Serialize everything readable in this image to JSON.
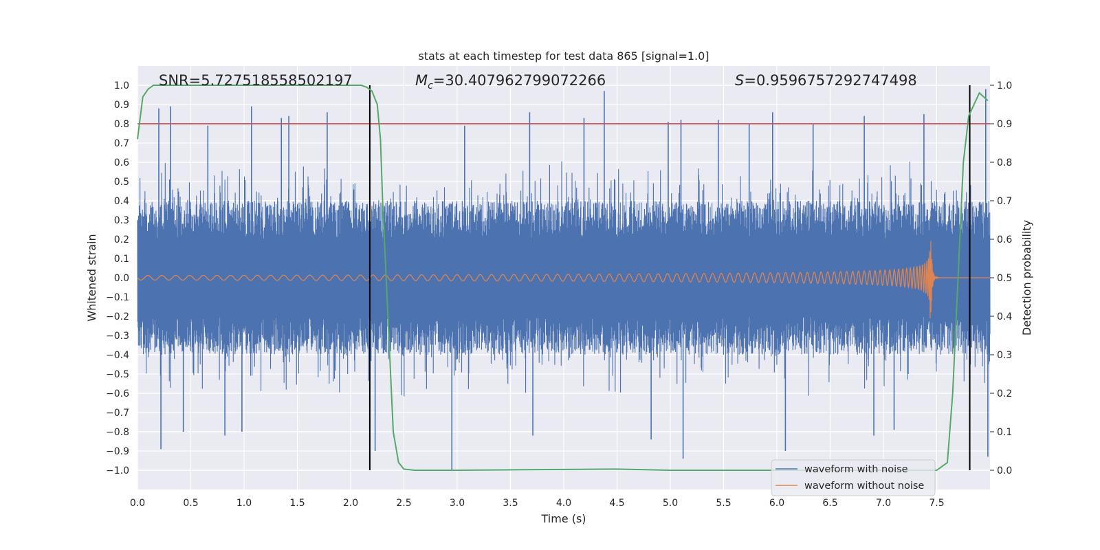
{
  "chart_data": {
    "type": "line",
    "title": "stats at each timestep for test data 865 [signal=1.0]",
    "xlabel": "Time (s)",
    "ylabel": "Whitened strain",
    "y2label": "Detection probability",
    "xlim": [
      0.0,
      8.0
    ],
    "ylim": [
      -1.1,
      1.1
    ],
    "y2lim": [
      -0.05,
      1.05
    ],
    "xticks": [
      "0.0",
      "0.5",
      "1.0",
      "1.5",
      "2.0",
      "2.5",
      "3.0",
      "3.5",
      "4.0",
      "4.5",
      "5.0",
      "5.5",
      "6.0",
      "6.5",
      "7.0",
      "7.5"
    ],
    "yticks": [
      "1.0",
      "0.9",
      "0.8",
      "0.7",
      "0.6",
      "0.5",
      "0.4",
      "0.3",
      "0.2",
      "0.1",
      "0.0",
      "−0.1",
      "−0.2",
      "−0.3",
      "−0.4",
      "−0.5",
      "−0.6",
      "−0.7",
      "−0.8",
      "−0.9",
      "−1.0"
    ],
    "y2ticks": [
      "1.0",
      "0.9",
      "0.8",
      "0.7",
      "0.6",
      "0.5",
      "0.4",
      "0.3",
      "0.2",
      "0.1",
      "0.0"
    ],
    "annotations": {
      "snr": "SNR=5.727518558502197",
      "mc_symbol": "M",
      "mc_sub": "c",
      "mc_value": "=30.407962799072266",
      "s_symbol": "S",
      "s_value": "=0.9596757292747498"
    },
    "legend": {
      "position": "lower-right",
      "entries": [
        "waveform with noise",
        "waveform without noise"
      ]
    },
    "threshold_y2": 0.9,
    "vertical_lines_x": [
      2.18,
      7.81
    ],
    "series": [
      {
        "name": "waveform with noise",
        "color": "#4c72b0",
        "style": "dense noise, |amplitude| mostly within 0.2-0.6 with spikes up to ~0.9",
        "spikes": [
          [
            0.2,
            0.88
          ],
          [
            0.22,
            -0.89
          ],
          [
            0.31,
            0.89
          ],
          [
            0.43,
            -0.8
          ],
          [
            0.66,
            0.79
          ],
          [
            0.82,
            -0.82
          ],
          [
            0.98,
            -0.8
          ],
          [
            1.07,
            0.89
          ],
          [
            1.35,
            0.83
          ],
          [
            1.42,
            0.84
          ],
          [
            1.78,
            0.86
          ],
          [
            2.23,
            -0.9
          ],
          [
            2.95,
            -1.0
          ],
          [
            3.07,
            0.79
          ],
          [
            3.68,
            0.86
          ],
          [
            3.71,
            -0.82
          ],
          [
            4.19,
            0.83
          ],
          [
            4.38,
            0.97
          ],
          [
            4.82,
            -0.84
          ],
          [
            4.98,
            0.81
          ],
          [
            5.1,
            0.82
          ],
          [
            5.12,
            -0.94
          ],
          [
            5.45,
            0.82
          ],
          [
            5.74,
            0.8
          ],
          [
            5.96,
            0.86
          ],
          [
            6.08,
            -0.9
          ],
          [
            6.34,
            0.8
          ],
          [
            6.82,
            0.84
          ],
          [
            6.91,
            -0.82
          ],
          [
            7.1,
            -0.79
          ],
          [
            7.38,
            0.85
          ],
          [
            7.96,
            0.98
          ],
          [
            7.98,
            -0.93
          ]
        ]
      },
      {
        "name": "waveform without noise",
        "color": "#dd8452",
        "style": "chirp: near-zero amplitude growing to peak ~0.32 at merger then ringdown",
        "merger_time": 7.44,
        "peak_amplitude": 0.32
      },
      {
        "name": "detection probability",
        "axis": "y2",
        "color": "#55a868",
        "x": [
          0.0,
          0.05,
          0.1,
          0.15,
          0.2,
          0.3,
          0.5,
          1.0,
          1.5,
          2.0,
          2.1,
          2.15,
          2.2,
          2.25,
          2.28,
          2.3,
          2.35,
          2.4,
          2.45,
          2.5,
          2.6,
          3.0,
          4.0,
          4.5,
          5.0,
          6.0,
          7.0,
          7.5,
          7.6,
          7.65,
          7.7,
          7.75,
          7.8,
          7.9,
          7.98
        ],
        "y": [
          0.86,
          0.97,
          0.99,
          1.0,
          1.0,
          1.0,
          1.0,
          1.0,
          1.0,
          1.0,
          1.0,
          0.995,
          0.985,
          0.95,
          0.86,
          0.7,
          0.4,
          0.1,
          0.02,
          0.003,
          0.0,
          0.0,
          0.002,
          0.003,
          0.0,
          0.0,
          0.0,
          0.0,
          0.02,
          0.2,
          0.5,
          0.8,
          0.92,
          0.98,
          0.96
        ]
      }
    ]
  }
}
